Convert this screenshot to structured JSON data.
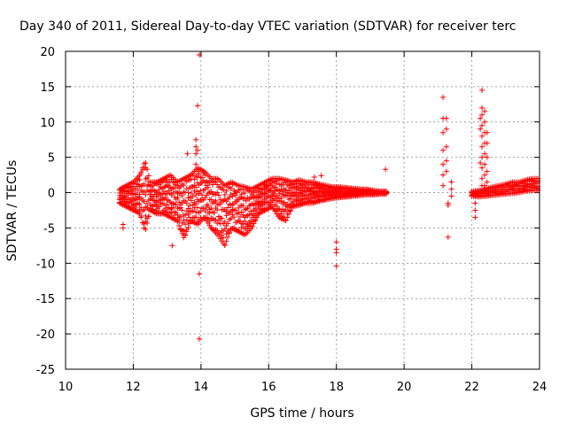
{
  "chart_data": {
    "type": "scatter",
    "title": "Day 340 of 2011, Sidereal Day-to-day VTEC variation (SDTVAR) for receiver terc",
    "xlabel": "GPS time / hours",
    "ylabel": "SDTVAR / TECUs",
    "xlim": [
      10,
      24
    ],
    "ylim": [
      -25,
      20
    ],
    "xticks": [
      10,
      12,
      14,
      16,
      18,
      20,
      22,
      24
    ],
    "yticks": [
      20,
      15,
      10,
      5,
      0,
      -5,
      -10,
      -15,
      -20,
      -25
    ],
    "grid": true,
    "marker": "+",
    "color": "#ff0000",
    "envelope": {
      "x": [
        11.6,
        11.8,
        12.0,
        12.2,
        12.35,
        12.5,
        12.7,
        12.9,
        13.1,
        13.3,
        13.5,
        13.7,
        13.9,
        14.1,
        14.3,
        14.5,
        14.7,
        14.9,
        15.1,
        15.3,
        15.5,
        15.7,
        15.9,
        16.1,
        16.3,
        16.5,
        16.7,
        16.9,
        17.1,
        17.3,
        17.5,
        17.7,
        17.9,
        18.1,
        18.3,
        18.5,
        18.7,
        18.9,
        19.1,
        19.3,
        19.5
      ],
      "upper": [
        0.5,
        1.0,
        1.5,
        2.5,
        4.5,
        1.5,
        1.5,
        2.0,
        2.5,
        1.5,
        2.0,
        2.5,
        3.5,
        3.0,
        2.0,
        2.0,
        1.0,
        1.5,
        1.0,
        0.8,
        0.5,
        1.0,
        1.5,
        2.0,
        2.0,
        1.8,
        1.5,
        1.8,
        1.5,
        1.5,
        1.2,
        1.0,
        0.8,
        0.8,
        0.7,
        0.6,
        0.5,
        0.5,
        0.3,
        0.2,
        0.2
      ],
      "lower": [
        -1.5,
        -2.0,
        -2.5,
        -3.0,
        -5.5,
        -2.5,
        -3.0,
        -3.0,
        -3.5,
        -4.0,
        -6.5,
        -4.0,
        -4.5,
        -3.5,
        -5.0,
        -6.0,
        -7.5,
        -5.0,
        -5.5,
        -6.0,
        -5.0,
        -3.0,
        -2.5,
        -2.0,
        -3.5,
        -4.0,
        -2.0,
        -1.8,
        -1.5,
        -1.5,
        -1.2,
        -1.0,
        -0.8,
        -0.7,
        -0.6,
        -0.5,
        -0.4,
        -0.3,
        -0.3,
        -0.2,
        -0.2
      ]
    },
    "envelope2": {
      "x": [
        22.0,
        22.2,
        22.4,
        22.6,
        22.8,
        23.0,
        23.2,
        23.4,
        23.6,
        23.8,
        24.0
      ],
      "upper": [
        0.2,
        0.3,
        0.5,
        0.8,
        1.0,
        1.2,
        1.5,
        1.5,
        1.8,
        2.0,
        2.0
      ],
      "lower": [
        -0.5,
        -0.6,
        -0.5,
        -0.4,
        -0.3,
        -0.2,
        -0.1,
        0.0,
        0.2,
        0.3,
        0.3
      ]
    },
    "spikes": [
      {
        "x": 11.7,
        "y": [
          -4.5,
          -5.0
        ]
      },
      {
        "x": 13.15,
        "y": [
          -7.5
        ]
      },
      {
        "x": 13.6,
        "y": [
          5.5
        ]
      },
      {
        "x": 13.85,
        "y": [
          4.0,
          5.5,
          6.5,
          7.5
        ]
      },
      {
        "x": 13.9,
        "y": [
          12.3,
          6.0,
          3.0
        ]
      },
      {
        "x": 13.95,
        "y": [
          19.5,
          -11.5,
          -20.7
        ]
      },
      {
        "x": 17.35,
        "y": [
          2.2
        ]
      },
      {
        "x": 17.55,
        "y": [
          2.4
        ]
      },
      {
        "x": 18.0,
        "y": [
          -7.0,
          -8.0,
          -8.5,
          -10.4
        ]
      },
      {
        "x": 19.45,
        "y": [
          3.3
        ]
      },
      {
        "x": 21.15,
        "y": [
          13.5,
          10.5,
          8.5,
          6.0,
          4.0,
          2.5,
          1.0
        ]
      },
      {
        "x": 21.25,
        "y": [
          10.5,
          9.0,
          6.5,
          4.5,
          3.0
        ]
      },
      {
        "x": 21.3,
        "y": [
          -6.3,
          -1.8,
          -1.5
        ]
      },
      {
        "x": 21.4,
        "y": [
          1.5,
          0.5,
          -0.5
        ]
      },
      {
        "x": 22.1,
        "y": [
          -3.5,
          -2.5,
          -1.5,
          -0.5
        ]
      },
      {
        "x": 22.25,
        "y": [
          4.2,
          9.0,
          10.5
        ]
      },
      {
        "x": 22.3,
        "y": [
          14.5,
          12.0,
          11.0,
          9.5,
          8.0,
          6.5,
          5.0,
          3.5,
          2.0,
          1.0
        ]
      },
      {
        "x": 22.38,
        "y": [
          11.5,
          10.0,
          8.5,
          7.0,
          5.5,
          4.0,
          2.5,
          1.0
        ]
      },
      {
        "x": 22.45,
        "y": [
          8.5,
          7.0,
          5.0,
          3.0,
          1.5
        ]
      }
    ]
  }
}
